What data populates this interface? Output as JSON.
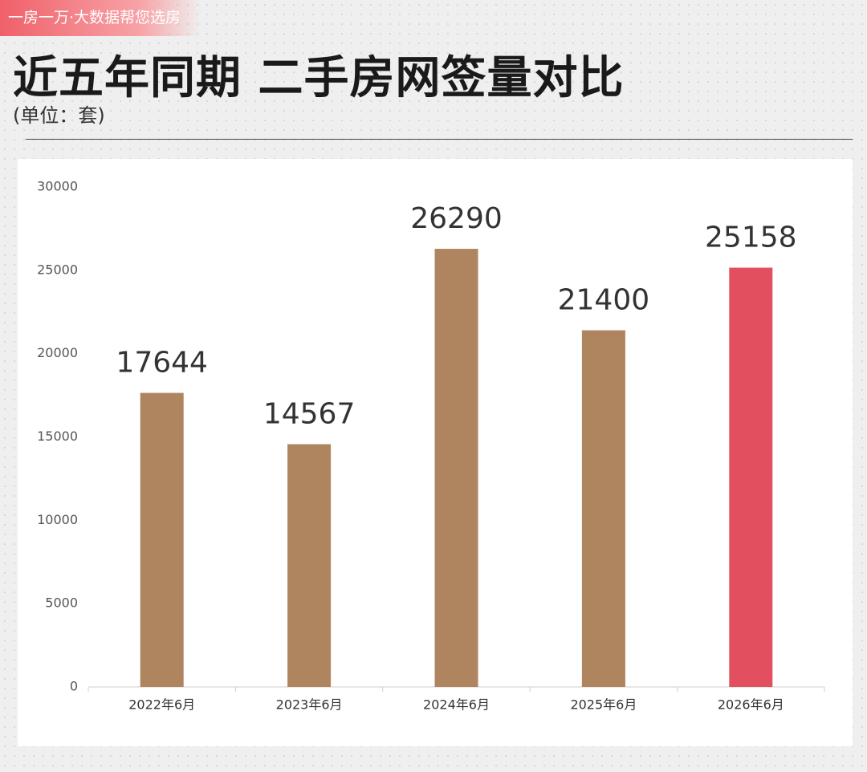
{
  "brand": "一房一万·大数据帮您选房",
  "chart_data": {
    "type": "bar",
    "title": "近五年同期 二手房网签量对比",
    "subtitle": "(单位：套)",
    "categories": [
      "2022年6月",
      "2023年6月",
      "2024年6月",
      "2025年6月",
      "2026年6月"
    ],
    "values": [
      17644,
      14567,
      26290,
      21400,
      25158
    ],
    "colors": [
      "#ae855f",
      "#ae855f",
      "#ae855f",
      "#ae855f",
      "#e24f5e"
    ],
    "ylim": [
      0,
      30000
    ],
    "yticks": [
      0,
      5000,
      10000,
      15000,
      20000,
      25000,
      30000
    ],
    "grid": false
  }
}
